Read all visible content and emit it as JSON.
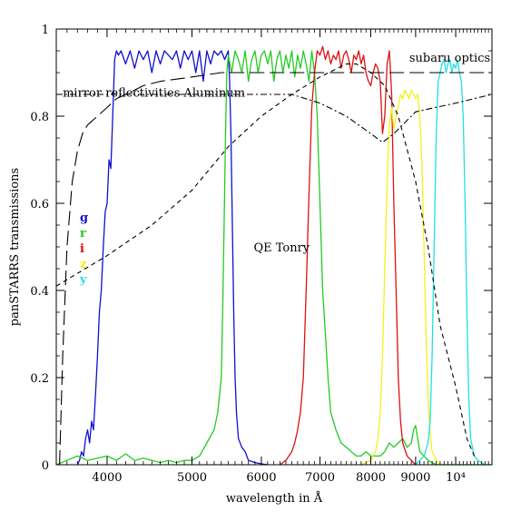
{
  "chart_data": {
    "type": "line",
    "title": "",
    "xlabel": "wavelength in Å",
    "ylabel": "panSTARRS transmissions",
    "x_scale": "log",
    "xlim": [
      3500,
      11000
    ],
    "ylim": [
      0,
      1
    ],
    "x_ticks": [
      {
        "value": 4000,
        "label": "4000"
      },
      {
        "value": 5000,
        "label": "5000"
      },
      {
        "value": 6000,
        "label": "6000"
      },
      {
        "value": 7000,
        "label": "7000"
      },
      {
        "value": 8000,
        "label": "8000"
      },
      {
        "value": 9000,
        "label": "9000"
      },
      {
        "value": 10000,
        "label": "10⁴"
      }
    ],
    "y_ticks": [
      {
        "value": 0,
        "label": "0"
      },
      {
        "value": 0.2,
        "label": "0.2"
      },
      {
        "value": 0.4,
        "label": "0.4"
      },
      {
        "value": 0.6,
        "label": "0.6"
      },
      {
        "value": 0.8,
        "label": "0.8"
      },
      {
        "value": 1,
        "label": "1"
      }
    ],
    "grid": false,
    "legend_position": "left-middle",
    "annotations": [
      {
        "text": "subaru optics",
        "x": 8850,
        "y": 0.935
      },
      {
        "text": "mirror reflectivities Aluminum",
        "x": 3560,
        "y": 0.855
      },
      {
        "text": "QE Tonry",
        "x": 5880,
        "y": 0.5
      }
    ],
    "series": [
      {
        "name": "g",
        "color": "#1010d0",
        "style": "solid",
        "x": [
          3700,
          3720,
          3740,
          3760,
          3780,
          3800,
          3820,
          3840,
          3860,
          3880,
          3900,
          3920,
          3940,
          3960,
          3980,
          4000,
          4020,
          4040,
          4060,
          4080,
          4100,
          4120,
          4150,
          4200,
          4250,
          4300,
          4350,
          4400,
          4450,
          4500,
          4550,
          4600,
          4650,
          4700,
          4750,
          4800,
          4850,
          4900,
          4950,
          5000,
          5050,
          5100,
          5150,
          5200,
          5250,
          5300,
          5350,
          5400,
          5450,
          5500,
          5520,
          5540,
          5560,
          5580,
          5600,
          5620,
          5650,
          5700,
          5750,
          5800,
          5900,
          6000,
          6100
        ],
        "y": [
          0,
          0.01,
          0.03,
          0.02,
          0.06,
          0.08,
          0.05,
          0.1,
          0.08,
          0.16,
          0.25,
          0.35,
          0.4,
          0.5,
          0.58,
          0.6,
          0.7,
          0.68,
          0.8,
          0.93,
          0.95,
          0.94,
          0.95,
          0.92,
          0.95,
          0.91,
          0.95,
          0.93,
          0.95,
          0.9,
          0.95,
          0.92,
          0.95,
          0.94,
          0.93,
          0.95,
          0.91,
          0.95,
          0.93,
          0.95,
          0.9,
          0.95,
          0.88,
          0.95,
          0.92,
          0.95,
          0.94,
          0.95,
          0.93,
          0.95,
          0.88,
          0.75,
          0.55,
          0.35,
          0.2,
          0.12,
          0.06,
          0.04,
          0.03,
          0.01,
          0.005,
          0.002,
          0
        ]
      },
      {
        "name": "r",
        "color": "#22cc22",
        "style": "solid",
        "x": [
          3500,
          3600,
          3700,
          3800,
          3900,
          4000,
          4100,
          4200,
          4300,
          4400,
          4500,
          4600,
          4700,
          4800,
          4900,
          5000,
          5100,
          5200,
          5300,
          5350,
          5400,
          5420,
          5440,
          5460,
          5480,
          5500,
          5550,
          5600,
          5650,
          5700,
          5750,
          5800,
          5850,
          5900,
          5950,
          6000,
          6050,
          6100,
          6150,
          6200,
          6250,
          6300,
          6350,
          6400,
          6450,
          6500,
          6550,
          6600,
          6650,
          6700,
          6750,
          6800,
          6850,
          6900,
          6950,
          7000,
          7050,
          7100,
          7150,
          7200,
          7300,
          7400,
          7500,
          7600,
          7700,
          7800,
          7900,
          8000,
          8100,
          8200,
          8300,
          8400,
          8500,
          8600,
          8700,
          8800,
          8900,
          8950,
          9000,
          9050,
          9100,
          9200,
          9300,
          9500,
          10000,
          10500,
          11000
        ],
        "y": [
          0,
          0.01,
          0.02,
          0.01,
          0.015,
          0.02,
          0.01,
          0.025,
          0.01,
          0.015,
          0.01,
          0.005,
          0.01,
          0.005,
          0.01,
          0.01,
          0.02,
          0.05,
          0.08,
          0.12,
          0.2,
          0.35,
          0.55,
          0.75,
          0.9,
          0.94,
          0.9,
          0.95,
          0.93,
          0.9,
          0.95,
          0.88,
          0.93,
          0.95,
          0.9,
          0.94,
          0.95,
          0.92,
          0.95,
          0.88,
          0.93,
          0.95,
          0.9,
          0.94,
          0.91,
          0.95,
          0.89,
          0.94,
          0.91,
          0.95,
          0.92,
          0.88,
          0.95,
          0.9,
          0.8,
          0.6,
          0.4,
          0.3,
          0.2,
          0.12,
          0.08,
          0.05,
          0.04,
          0.03,
          0.02,
          0.02,
          0.03,
          0.02,
          0.02,
          0.02,
          0.03,
          0.05,
          0.04,
          0.05,
          0.06,
          0.04,
          0.05,
          0.08,
          0.09,
          0.06,
          0.03,
          0.02,
          0.01,
          0,
          0,
          0,
          0
        ]
      },
      {
        "name": "i",
        "color": "#dd1111",
        "style": "solid",
        "x": [
          6300,
          6400,
          6500,
          6550,
          6600,
          6650,
          6700,
          6750,
          6800,
          6850,
          6900,
          6950,
          7000,
          7050,
          7100,
          7150,
          7200,
          7250,
          7300,
          7350,
          7400,
          7450,
          7500,
          7550,
          7600,
          7650,
          7700,
          7750,
          7800,
          7850,
          7900,
          7950,
          8000,
          8050,
          8100,
          8150,
          8200,
          8250,
          8300,
          8350,
          8400,
          8450,
          8500,
          8550,
          8600,
          8650,
          8700,
          8800,
          8900,
          9000
        ],
        "y": [
          0,
          0.01,
          0.03,
          0.05,
          0.08,
          0.12,
          0.2,
          0.4,
          0.62,
          0.82,
          0.9,
          0.95,
          0.94,
          0.96,
          0.93,
          0.95,
          0.92,
          0.94,
          0.93,
          0.95,
          0.91,
          0.94,
          0.95,
          0.93,
          0.9,
          0.94,
          0.93,
          0.95,
          0.92,
          0.94,
          0.9,
          0.88,
          0.87,
          0.9,
          0.92,
          0.91,
          0.88,
          0.76,
          0.8,
          0.92,
          0.95,
          0.85,
          0.6,
          0.4,
          0.2,
          0.1,
          0.05,
          0.02,
          0.01,
          0
        ]
      },
      {
        "name": "z",
        "color": "#f2f21a",
        "style": "solid",
        "x": [
          7800,
          8000,
          8100,
          8150,
          8200,
          8250,
          8300,
          8350,
          8400,
          8450,
          8500,
          8550,
          8600,
          8650,
          8700,
          8750,
          8800,
          8850,
          8900,
          8950,
          9000,
          9050,
          9100,
          9150,
          9200,
          9250,
          9300,
          9350,
          9400,
          9500,
          9600
        ],
        "y": [
          0,
          0.01,
          0.03,
          0.06,
          0.12,
          0.25,
          0.45,
          0.65,
          0.78,
          0.82,
          0.77,
          0.8,
          0.82,
          0.85,
          0.84,
          0.86,
          0.85,
          0.84,
          0.86,
          0.85,
          0.84,
          0.85,
          0.8,
          0.7,
          0.5,
          0.3,
          0.15,
          0.07,
          0.03,
          0.01,
          0
        ]
      },
      {
        "name": "y",
        "color": "#22e0e0",
        "style": "solid",
        "x": [
          9000,
          9100,
          9200,
          9300,
          9350,
          9400,
          9450,
          9500,
          9550,
          9600,
          9650,
          9700,
          9750,
          9800,
          9850,
          9900,
          9950,
          10000,
          10050,
          10100,
          10150,
          10200,
          10250,
          10300,
          10350,
          10400,
          10500,
          10600,
          10700,
          10800
        ],
        "y": [
          0,
          0.01,
          0.02,
          0.05,
          0.1,
          0.25,
          0.5,
          0.75,
          0.88,
          0.9,
          0.92,
          0.93,
          0.9,
          0.92,
          0.93,
          0.9,
          0.92,
          0.91,
          0.93,
          0.9,
          0.88,
          0.8,
          0.6,
          0.35,
          0.15,
          0.06,
          0.02,
          0.01,
          0.005,
          0
        ]
      },
      {
        "name": "mirror reflectivities Aluminum",
        "color": "#000000",
        "style": "dashdot",
        "x": [
          3500,
          4000,
          5000,
          6000,
          6500,
          7000,
          7500,
          8000,
          8250,
          8500,
          9000,
          10000,
          11000
        ],
        "y": [
          0.85,
          0.85,
          0.85,
          0.85,
          0.85,
          0.83,
          0.8,
          0.76,
          0.74,
          0.76,
          0.81,
          0.83,
          0.85
        ]
      },
      {
        "name": "QE Tonry",
        "color": "#000000",
        "style": "dashed",
        "x": [
          3500,
          4000,
          4500,
          5000,
          5500,
          6000,
          6500,
          7000,
          7500,
          7700,
          8000,
          8300,
          8600,
          9000,
          9300,
          9600,
          10000,
          10300,
          10500
        ],
        "y": [
          0.41,
          0.48,
          0.55,
          0.63,
          0.73,
          0.8,
          0.85,
          0.89,
          0.92,
          0.92,
          0.9,
          0.87,
          0.8,
          0.65,
          0.5,
          0.32,
          0.18,
          0.06,
          0.02
        ]
      },
      {
        "name": "subaru optics",
        "color": "#000000",
        "style": "longdash",
        "x": [
          3530,
          3560,
          3600,
          3650,
          3700,
          3750,
          3800,
          3900,
          4000,
          4100,
          4200,
          4300,
          4400,
          4600,
          4800,
          5000,
          5200,
          5400,
          5600,
          6000,
          7000,
          8000,
          9000,
          10000,
          11000
        ],
        "y": [
          0,
          0.25,
          0.5,
          0.65,
          0.72,
          0.76,
          0.78,
          0.8,
          0.82,
          0.84,
          0.85,
          0.86,
          0.87,
          0.88,
          0.885,
          0.89,
          0.895,
          0.9,
          0.9,
          0.9,
          0.9,
          0.9,
          0.9,
          0.9,
          0.9
        ]
      }
    ],
    "legend": [
      {
        "label": "g",
        "color": "#1010d0"
      },
      {
        "label": "r",
        "color": "#22cc22"
      },
      {
        "label": "i",
        "color": "#dd1111"
      },
      {
        "label": "z",
        "color": "#f2f21a"
      },
      {
        "label": "y",
        "color": "#22e0e0"
      }
    ]
  }
}
